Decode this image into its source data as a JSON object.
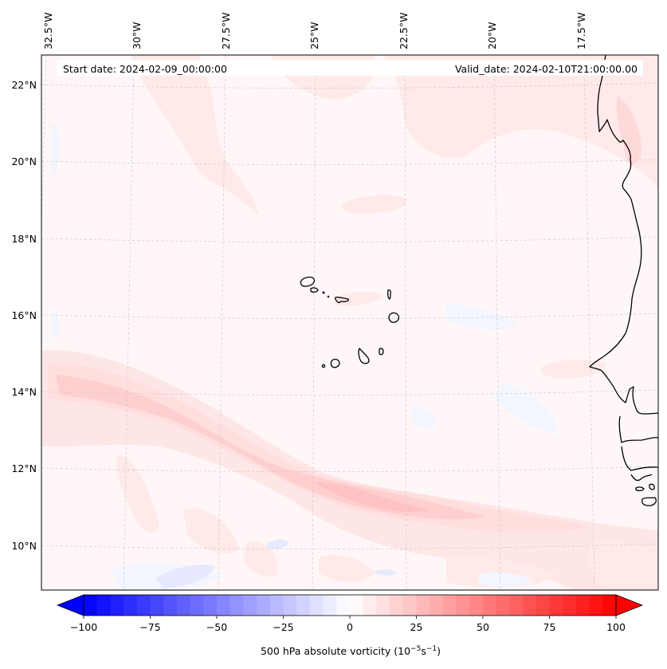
{
  "map": {
    "projection": "regional lat/lon (slightly conic)",
    "longitude_labels": [
      "32.5°W",
      "30°W",
      "27.5°W",
      "25°W",
      "22.5°W",
      "20°W",
      "17.5°W"
    ],
    "latitude_labels": [
      "22°N",
      "20°N",
      "18°N",
      "16°N",
      "14°N",
      "12°N",
      "10°N"
    ],
    "start_date_text": "Start date: 2024-02-09_00:00:00",
    "valid_date_text": "Valid_date: 2024-02-10T21:00:00.00",
    "field": "500 hPa absolute vorticity",
    "features": [
      "Cape Verde islands",
      "West African coastline (Mauritania, Senegal, Gambia, Guinea-Bissau)"
    ],
    "colors": {
      "background_field": "#fff7f7",
      "weak_positive": "#ffe6e6",
      "moderate_positive": "#ffcccc",
      "strong_positive": "#ffb3b3",
      "weak_negative": "#f4f6ff",
      "moderate_negative": "#dfe3ff",
      "coastline": "#000000",
      "grid": "#c8c8c8"
    }
  },
  "colorbar": {
    "label_main": "500 hPa absolute vorticity (10",
    "label_exp1": "−5",
    "label_mid": "s",
    "label_exp2": "−1",
    "label_end": ")",
    "min": -100,
    "max": 100,
    "levels_step": 5,
    "extend": "both",
    "cmap": "bwr",
    "tick_values": [
      -100,
      -75,
      -50,
      -25,
      0,
      25,
      50,
      75,
      100
    ],
    "tick_labels": [
      "−100",
      "−75",
      "−50",
      "−25",
      "0",
      "25",
      "50",
      "75",
      "100"
    ]
  }
}
